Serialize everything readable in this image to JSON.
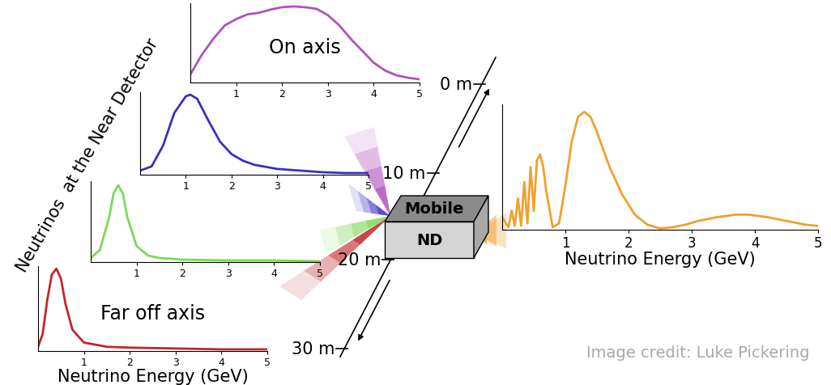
{
  "side_label": "Neutrinos  at the Near Detector",
  "detector": {
    "top": "Mobile",
    "front": "ND"
  },
  "scale": {
    "ticks": [
      "0 m",
      "10 m",
      "20 m",
      "30 m"
    ]
  },
  "credit": "Image credit: Luke Pickering",
  "chart_data": [
    {
      "type": "line",
      "annotation": "On axis",
      "color": "#b050c0",
      "x": [
        0,
        0.25,
        0.5,
        0.75,
        1,
        1.25,
        1.5,
        1.75,
        2,
        2.25,
        2.5,
        2.75,
        3,
        3.25,
        3.5,
        3.75,
        4,
        4.25,
        4.5,
        4.75,
        5
      ],
      "values": [
        0.1,
        0.35,
        0.55,
        0.72,
        0.8,
        0.86,
        0.88,
        0.92,
        0.95,
        0.96,
        0.95,
        0.93,
        0.85,
        0.72,
        0.55,
        0.4,
        0.25,
        0.15,
        0.09,
        0.06,
        0.04
      ],
      "xlim": [
        0,
        5
      ],
      "xticks": [
        1,
        2,
        3,
        4,
        5
      ],
      "ylim": [
        0,
        1
      ],
      "tick_labels": "x"
    },
    {
      "type": "line",
      "color": "#3a2fc4",
      "x": [
        0,
        0.25,
        0.5,
        0.75,
        1,
        1.1,
        1.25,
        1.5,
        1.75,
        2,
        2.25,
        2.5,
        3,
        3.5,
        4,
        4.5,
        5
      ],
      "values": [
        0.05,
        0.1,
        0.35,
        0.75,
        0.95,
        0.97,
        0.92,
        0.65,
        0.4,
        0.25,
        0.17,
        0.12,
        0.07,
        0.05,
        0.03,
        0.02,
        0.02
      ],
      "xlim": [
        0,
        5
      ],
      "xticks": [
        1,
        2,
        3,
        4,
        5
      ],
      "ylim": [
        0,
        1
      ],
      "tick_labels": "x"
    },
    {
      "type": "line",
      "color": "#7ad957",
      "x": [
        0,
        0.2,
        0.4,
        0.5,
        0.6,
        0.7,
        0.8,
        1,
        1.25,
        1.5,
        2,
        3,
        4,
        5
      ],
      "values": [
        0.05,
        0.15,
        0.55,
        0.85,
        0.95,
        0.85,
        0.55,
        0.2,
        0.08,
        0.05,
        0.03,
        0.02,
        0.02,
        0.01
      ],
      "xlim": [
        0,
        5
      ],
      "xticks": [
        1,
        2,
        3,
        4,
        5
      ],
      "ylim": [
        0,
        1
      ],
      "tick_labels": "x"
    },
    {
      "type": "line",
      "annotation": "Far off axis",
      "color": "#c0282a",
      "x_label": "Neutrino Energy (GeV)",
      "x": [
        0,
        0.1,
        0.2,
        0.3,
        0.4,
        0.5,
        0.6,
        0.75,
        1,
        1.5,
        2,
        3,
        4,
        5
      ],
      "values": [
        0.05,
        0.2,
        0.6,
        0.9,
        0.97,
        0.85,
        0.55,
        0.25,
        0.1,
        0.05,
        0.04,
        0.03,
        0.02,
        0.02
      ],
      "xlim": [
        0,
        5
      ],
      "xticks": [
        1,
        2,
        3,
        4,
        5
      ],
      "ylim": [
        0,
        1
      ],
      "tick_labels": "x"
    },
    {
      "type": "line",
      "color": "#f0a030",
      "x_label": "Neutrino Energy (GeV)",
      "x": [
        0,
        0.1,
        0.15,
        0.2,
        0.25,
        0.3,
        0.35,
        0.4,
        0.45,
        0.5,
        0.55,
        0.6,
        0.65,
        0.7,
        0.8,
        0.9,
        1.0,
        1.1,
        1.2,
        1.3,
        1.4,
        1.5,
        1.7,
        1.9,
        2.1,
        2.3,
        2.5,
        2.7,
        2.9,
        3.1,
        3.4,
        3.7,
        3.9,
        4.2,
        4.5,
        4.8,
        5
      ],
      "values": [
        0.1,
        0.02,
        0.15,
        0.03,
        0.25,
        0.03,
        0.38,
        0.05,
        0.5,
        0.15,
        0.55,
        0.6,
        0.5,
        0.3,
        0.02,
        0.05,
        0.35,
        0.7,
        0.9,
        0.94,
        0.9,
        0.78,
        0.5,
        0.28,
        0.12,
        0.04,
        0.01,
        0.02,
        0.04,
        0.07,
        0.1,
        0.12,
        0.12,
        0.1,
        0.07,
        0.04,
        0.03
      ],
      "xlim": [
        0,
        5
      ],
      "xticks": [
        1,
        2,
        3,
        4,
        5
      ],
      "ylim": [
        0,
        1
      ],
      "tick_labels": "x"
    }
  ]
}
